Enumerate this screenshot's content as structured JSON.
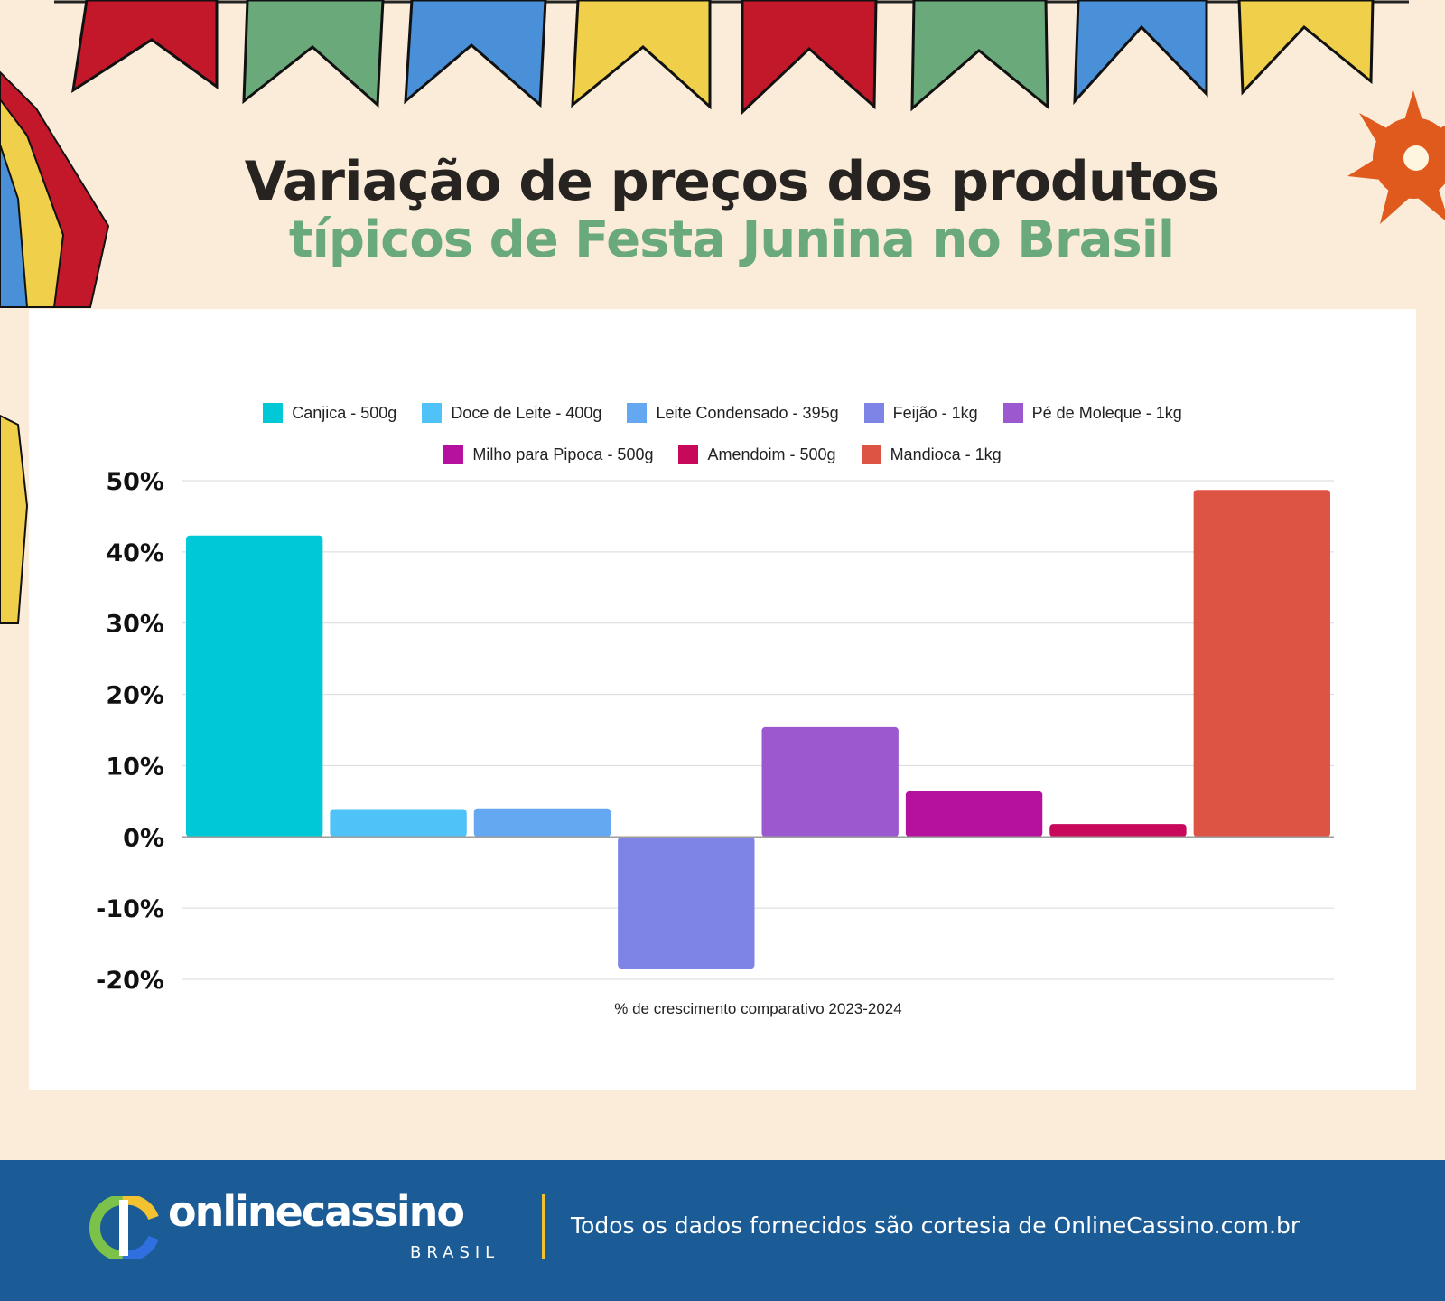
{
  "header": {
    "title_line1": "Variação de preços dos produtos",
    "title_line2": "típicos de Festa Junina no Brasil"
  },
  "colors": {
    "background": "#faecd9",
    "title_dark": "#262321",
    "title_green": "#6aa97a",
    "footer_bg": "#1b5b96",
    "footer_accent": "#f2c230",
    "flag_colors": [
      "#c3182a",
      "#6aa97a",
      "#4a90d9",
      "#f0d04a"
    ]
  },
  "chart_data": {
    "type": "bar",
    "xlabel": "% de crescimento comparativo 2023-2024",
    "ylabel": "",
    "ylim": [
      -20,
      50
    ],
    "yticks": [
      "50%",
      "40%",
      "30%",
      "20%",
      "10%",
      "0%",
      "-10%",
      "-20%"
    ],
    "grid": true,
    "legend_position": "top",
    "series": [
      {
        "name": "Canjica - 500g",
        "value": 42.3,
        "color": "#00c8d7"
      },
      {
        "name": "Doce de Leite - 400g",
        "value": 3.9,
        "color": "#4fc3f7"
      },
      {
        "name": "Leite Condensado - 395g",
        "value": 4.0,
        "color": "#64a8f2"
      },
      {
        "name": "Feijão - 1kg",
        "value": -18.5,
        "color": "#7e84e6"
      },
      {
        "name": "Pé de Moleque - 1kg",
        "value": 15.4,
        "color": "#9c59cf"
      },
      {
        "name": "Milho para Pipoca - 500g",
        "value": 6.4,
        "color": "#b5119e"
      },
      {
        "name": "Amendoim - 500g",
        "value": 1.8,
        "color": "#c8085a"
      },
      {
        "name": "Mandioca - 1kg",
        "value": 48.7,
        "color": "#dd5445"
      }
    ]
  },
  "footer": {
    "logo_text": "onlinecassino",
    "logo_sub": "BRASIL",
    "note": "Todos os dados fornecidos são cortesia de OnlineCassino.com.br"
  }
}
